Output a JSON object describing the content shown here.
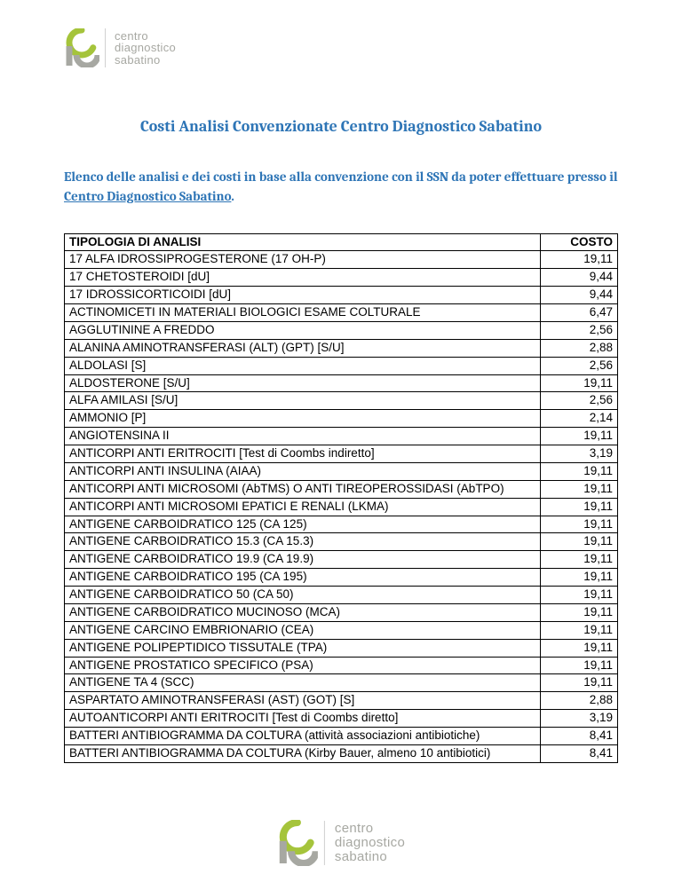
{
  "colors": {
    "title": "#2e75b6",
    "intro": "#2e75b6",
    "link": "#2e75b6",
    "border": "#000000",
    "text": "#000000",
    "logo_green": "#a5c43b",
    "logo_gray": "#a7a8a2"
  },
  "logo": {
    "line1": "centro",
    "line2": "diagnostico",
    "line3": "sabatino"
  },
  "title": "Costi Analisi Convenzionate Centro Diagnostico Sabatino",
  "intro": {
    "part1": "Elenco delle analisi e dei costi in base alla convenzione con il SSN da poter effettuare presso il ",
    "link": "Centro Diagnostico Sabatino",
    "part2": "."
  },
  "table": {
    "headers": {
      "name": "TIPOLOGIA DI ANALISI",
      "cost": "COSTO"
    },
    "rows": [
      {
        "name": "17 ALFA IDROSSIPROGESTERONE (17 OH-P)",
        "cost": "19,11"
      },
      {
        "name": "17 CHETOSTEROIDI [dU]",
        "cost": "9,44"
      },
      {
        "name": "17 IDROSSICORTICOIDI [dU]",
        "cost": "9,44"
      },
      {
        "name": "ACTINOMICETI IN MATERIALI BIOLOGICI ESAME COLTURALE",
        "cost": "6,47"
      },
      {
        "name": "AGGLUTININE A FREDDO",
        "cost": "2,56"
      },
      {
        "name": "ALANINA AMINOTRANSFERASI (ALT) (GPT) [S/U]",
        "cost": "2,88"
      },
      {
        "name": "ALDOLASI [S]",
        "cost": "2,56"
      },
      {
        "name": "ALDOSTERONE [S/U]",
        "cost": "19,11"
      },
      {
        "name": "ALFA AMILASI [S/U]",
        "cost": "2,56"
      },
      {
        "name": "AMMONIO [P]",
        "cost": "2,14"
      },
      {
        "name": "ANGIOTENSINA II",
        "cost": "19,11"
      },
      {
        "name": "ANTICORPI ANTI ERITROCITI [Test di Coombs indiretto]",
        "cost": "3,19"
      },
      {
        "name": "ANTICORPI ANTI INSULINA (AIAA)",
        "cost": "19,11"
      },
      {
        "name": "ANTICORPI ANTI MICROSOMI (AbTMS) O ANTI TIREOPEROSSIDASI (AbTPO)",
        "cost": "19,11"
      },
      {
        "name": "ANTICORPI ANTI MICROSOMI EPATICI E RENALI (LKMA)",
        "cost": "19,11"
      },
      {
        "name": "ANTIGENE CARBOIDRATICO 125 (CA 125)",
        "cost": "19,11"
      },
      {
        "name": "ANTIGENE CARBOIDRATICO 15.3 (CA 15.3)",
        "cost": "19,11"
      },
      {
        "name": "ANTIGENE CARBOIDRATICO 19.9 (CA 19.9)",
        "cost": "19,11"
      },
      {
        "name": "ANTIGENE CARBOIDRATICO 195 (CA 195)",
        "cost": "19,11"
      },
      {
        "name": "ANTIGENE CARBOIDRATICO 50 (CA 50)",
        "cost": "19,11"
      },
      {
        "name": "ANTIGENE CARBOIDRATICO MUCINOSO (MCA)",
        "cost": "19,11"
      },
      {
        "name": "ANTIGENE CARCINO EMBRIONARIO (CEA)",
        "cost": "19,11"
      },
      {
        "name": "ANTIGENE POLIPEPTIDICO TISSUTALE (TPA)",
        "cost": "19,11"
      },
      {
        "name": "ANTIGENE PROSTATICO SPECIFICO (PSA)",
        "cost": "19,11"
      },
      {
        "name": "ANTIGENE TA 4 (SCC)",
        "cost": "19,11"
      },
      {
        "name": "ASPARTATO AMINOTRANSFERASI (AST) (GOT) [S]",
        "cost": "2,88"
      },
      {
        "name": "AUTOANTICORPI ANTI ERITROCITI [Test di Coombs diretto]",
        "cost": "3,19"
      },
      {
        "name": "BATTERI ANTIBIOGRAMMA DA COLTURA (attività associazioni antibiotiche)",
        "cost": "8,41"
      },
      {
        "name": "BATTERI ANTIBIOGRAMMA DA COLTURA (Kirby Bauer, almeno 10 antibiotici)",
        "cost": "8,41"
      }
    ]
  }
}
